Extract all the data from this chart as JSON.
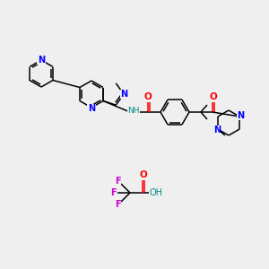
{
  "bg_color": "#efefef",
  "atom_colors": {
    "N": "#0000ff",
    "O": "#ff0000",
    "F": "#cc00cc",
    "H": "#008b8b",
    "C": "#000000"
  },
  "bond_color": "#000000",
  "figsize": [
    3.0,
    3.0
  ],
  "dpi": 100,
  "lw": 1.1
}
